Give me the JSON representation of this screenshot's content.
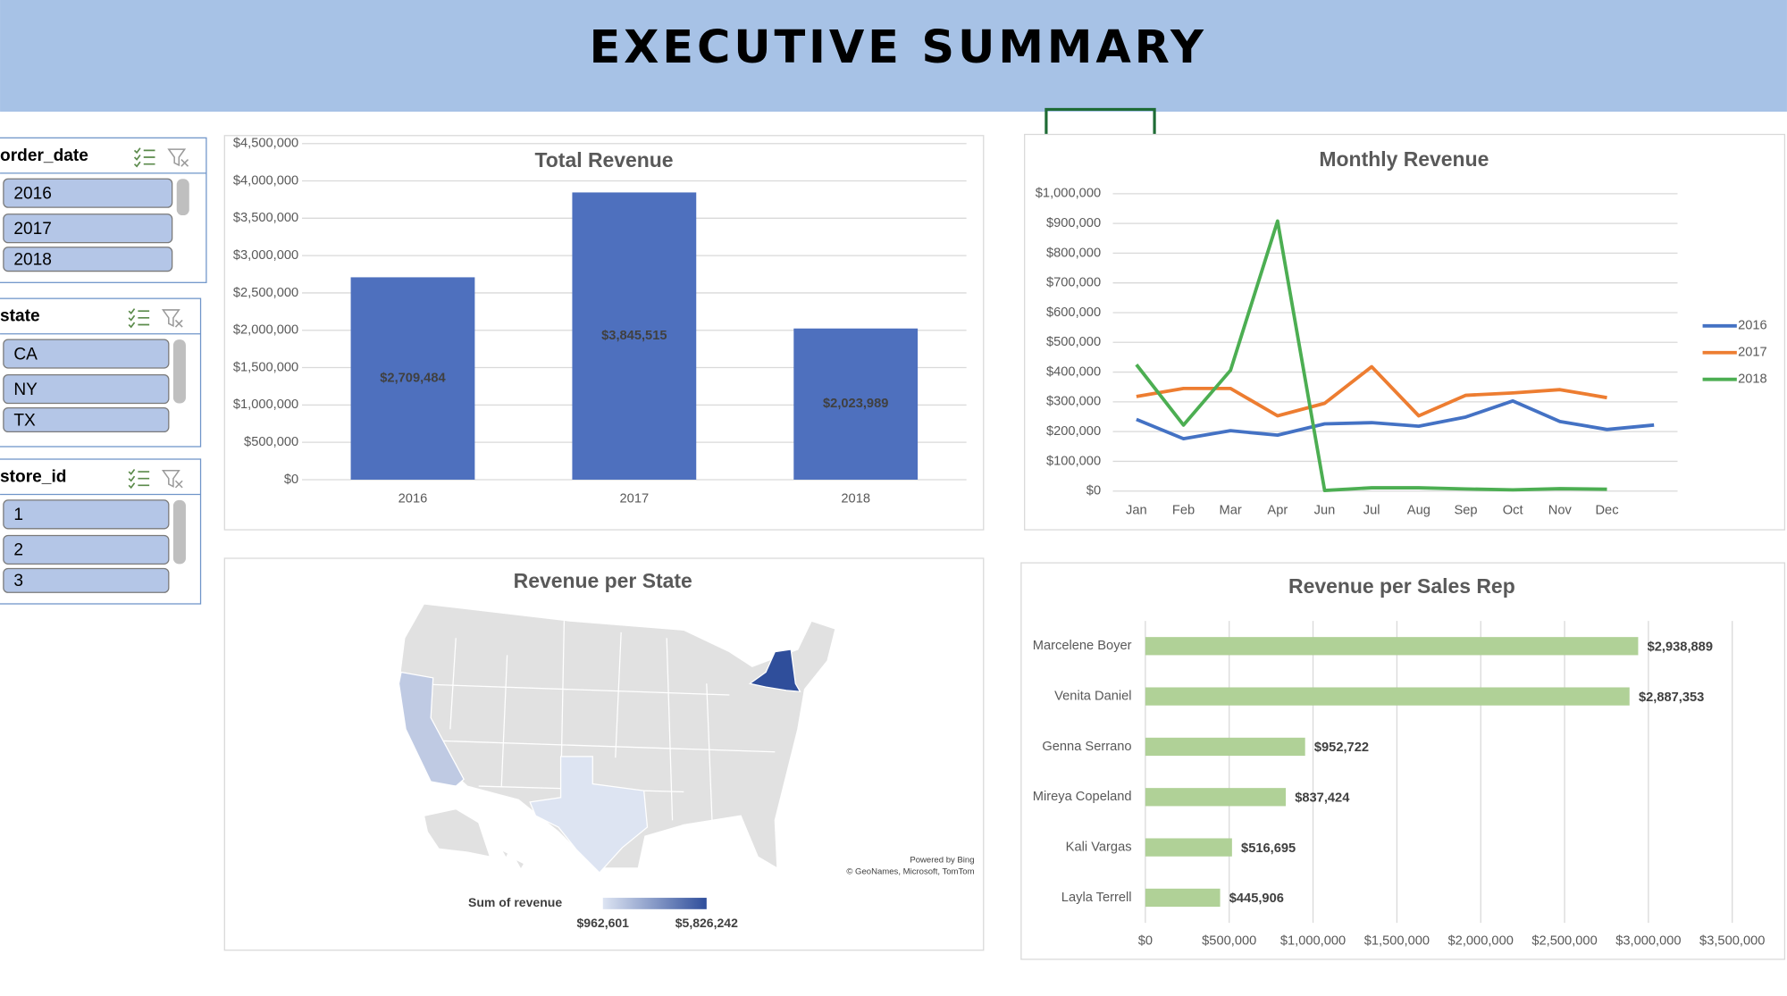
{
  "header": {
    "title": "EXECUTIVE SUMMARY"
  },
  "slicers": [
    {
      "title": "order_date",
      "items": [
        "2016",
        "2017",
        "2018"
      ]
    },
    {
      "title": "state",
      "items": [
        "CA",
        "NY",
        "TX"
      ]
    },
    {
      "title": "store_id",
      "items": [
        "1",
        "2",
        "3"
      ]
    }
  ],
  "chart_data": [
    {
      "type": "bar",
      "title": "Total Revenue",
      "categories": [
        "2016",
        "2017",
        "2018"
      ],
      "values": [
        2709484,
        3845515,
        2023989
      ],
      "value_labels": [
        "$2,709,484",
        "$3,845,515",
        "$2,023,989"
      ],
      "color": "#4e70be",
      "grid": true,
      "ylim": [
        0,
        4500000
      ],
      "yticks": [
        {
          "value": 0,
          "label": "$0"
        },
        {
          "value": 500000,
          "label": "$500,000"
        },
        {
          "value": 1000000,
          "label": "$1,000,000"
        },
        {
          "value": 1500000,
          "label": "$1,500,000"
        },
        {
          "value": 2000000,
          "label": "$2,000,000"
        },
        {
          "value": 2500000,
          "label": "$2,500,000"
        },
        {
          "value": 3000000,
          "label": "$3,000,000"
        },
        {
          "value": 3500000,
          "label": "$3,500,000"
        },
        {
          "value": 4000000,
          "label": "$4,000,000"
        },
        {
          "value": 4500000,
          "label": "$4,500,000"
        }
      ]
    },
    {
      "type": "line",
      "title": "Monthly Revenue",
      "categories": [
        "Jan",
        "Feb",
        "Mar",
        "Apr",
        "Jun",
        "Jul",
        "Aug",
        "Sep",
        "Oct",
        "Nov",
        "Dec",
        null
      ],
      "series": [
        {
          "name": "2016",
          "color": "#4472c4",
          "values": [
            241000,
            176000,
            203000,
            188000,
            226000,
            230000,
            218000,
            249000,
            303000,
            234000,
            207000,
            222000
          ]
        },
        {
          "name": "2017",
          "color": "#ed7d31",
          "values": [
            318000,
            345000,
            345000,
            253000,
            295000,
            418000,
            253000,
            322000,
            330000,
            341000,
            314000,
            null
          ]
        },
        {
          "name": "2018",
          "color": "#4cae52",
          "values": [
            425000,
            222000,
            406000,
            908000,
            2000,
            11000,
            11000,
            7000,
            4000,
            8000,
            6000,
            null
          ]
        }
      ],
      "grid": true,
      "legend": "right",
      "ylim": [
        0,
        1000000
      ],
      "yticks": [
        {
          "value": 0,
          "label": "$0"
        },
        {
          "value": 100000,
          "label": "$100,000"
        },
        {
          "value": 200000,
          "label": "$200,000"
        },
        {
          "value": 300000,
          "label": "$300,000"
        },
        {
          "value": 400000,
          "label": "$400,000"
        },
        {
          "value": 500000,
          "label": "$500,000"
        },
        {
          "value": 600000,
          "label": "$600,000"
        },
        {
          "value": 700000,
          "label": "$700,000"
        },
        {
          "value": 800000,
          "label": "$800,000"
        },
        {
          "value": 900000,
          "label": "$900,000"
        },
        {
          "value": 1000000,
          "label": "$1,000,000"
        }
      ]
    },
    {
      "type": "map",
      "title": "Revenue per State",
      "values": [
        1790145,
        5826242,
        962601
      ],
      "legend_title": "Sum of revenue",
      "scale_colors": [
        "#dde4f2",
        "#2f4e9b"
      ],
      "scale": [
        {
          "value": 962601,
          "label": "$962,601"
        },
        {
          "value": 5826242,
          "label": "$5,826,242"
        }
      ],
      "attribution": [
        "Powered by Bing",
        "© GeoNames, Microsoft, TomTom"
      ]
    },
    {
      "type": "barh",
      "title": "Revenue per Sales Rep",
      "categories": [
        "Marcelene Boyer",
        "Venita Daniel",
        "Genna Serrano",
        "Mireya Copeland",
        "Kali Vargas",
        "Layla Terrell"
      ],
      "values": [
        2938889,
        2887353,
        952722,
        837424,
        516695,
        445906
      ],
      "value_labels": [
        "$2,938,889",
        "$2,887,353",
        "$952,722",
        "$837,424",
        "$516,695",
        "$445,906"
      ],
      "color": "#b0d197",
      "grid": true,
      "xlim": [
        0,
        3500000
      ],
      "xticks": [
        {
          "value": 0,
          "label": "$0"
        },
        {
          "value": 500000,
          "label": "$500,000"
        },
        {
          "value": 1000000,
          "label": "$1,000,000"
        },
        {
          "value": 1500000,
          "label": "$1,500,000"
        },
        {
          "value": 2000000,
          "label": "$2,000,000"
        },
        {
          "value": 2500000,
          "label": "$2,500,000"
        },
        {
          "value": 3000000,
          "label": "$3,000,000"
        },
        {
          "value": 3500000,
          "label": "$3,500,000"
        }
      ]
    }
  ]
}
